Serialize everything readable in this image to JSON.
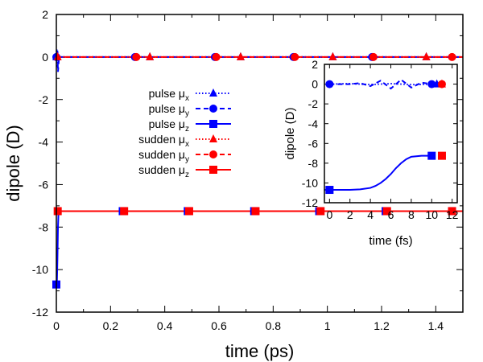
{
  "chart_data": [
    {
      "type": "line",
      "panel": "main",
      "xlabel": "time (ps)",
      "ylabel": "dipole (D)",
      "xlim": [
        0,
        1.5
      ],
      "ylim": [
        -12,
        2
      ],
      "xticks": [
        0,
        0.2,
        0.4,
        0.6,
        0.8,
        1.0,
        1.2,
        1.4
      ],
      "xtick_labels": [
        "0",
        "0.2",
        "0.4",
        "0.6",
        "0.8",
        "1",
        "1.2",
        "1.4"
      ],
      "yticks": [
        -12,
        -10,
        -8,
        -6,
        -4,
        -2,
        0,
        2
      ],
      "ytick_labels": [
        "-12",
        "-10",
        "-8",
        "-6",
        "-4",
        "-2",
        "0",
        "2"
      ],
      "legend_position": "upper-middle",
      "series": [
        {
          "name": "pulse μx",
          "label_main": "pulse μ",
          "label_sub": "x",
          "color": "#0000ff",
          "dash": "dotted",
          "marker": "triangle",
          "x": [
            0,
            0.001,
            0.003,
            0.005,
            0.01,
            1.5
          ],
          "y": [
            0,
            0.4,
            -0.5,
            0.2,
            0,
            0
          ],
          "marker_x": [
            0,
            0.345,
            0.68,
            1.02,
            1.365
          ],
          "marker_y": [
            0,
            0,
            0,
            0,
            0
          ]
        },
        {
          "name": "pulse μy",
          "label_main": "pulse μ",
          "label_sub": "y",
          "color": "#0000ff",
          "dash": "dashed",
          "marker": "circle",
          "x": [
            0,
            0.002,
            0.004,
            0.006,
            0.01,
            1.5
          ],
          "y": [
            0,
            -0.3,
            0.3,
            -0.7,
            0,
            0
          ],
          "marker_x": [
            0,
            0.29,
            0.585,
            0.875,
            1.165
          ],
          "marker_y": [
            0,
            0,
            0,
            0,
            0
          ]
        },
        {
          "name": "pulse μz",
          "label_main": "pulse μ",
          "label_sub": "z",
          "color": "#0000ff",
          "dash": "solid",
          "marker": "square",
          "x": [
            0,
            0.002,
            0.004,
            0.006,
            0.008,
            0.01,
            1.5
          ],
          "y": [
            -10.7,
            -10.7,
            -9.5,
            -8.0,
            -7.3,
            -7.25,
            -7.25
          ],
          "marker_x": [
            0,
            0.245,
            0.485,
            0.73,
            0.97,
            1.215,
            1.46
          ],
          "marker_y": [
            -10.7,
            -7.25,
            -7.25,
            -7.25,
            -7.25,
            -7.25,
            -7.25
          ]
        },
        {
          "name": "sudden μx",
          "label_main": "sudden μ",
          "label_sub": "x",
          "color": "#ff0000",
          "dash": "dotted",
          "marker": "triangle",
          "x": [
            0,
            1.5
          ],
          "y": [
            0,
            0
          ],
          "marker_x": [
            0.005,
            0.345,
            0.68,
            1.02,
            1.365
          ],
          "marker_y": [
            0,
            0,
            0,
            0,
            0
          ]
        },
        {
          "name": "sudden μy",
          "label_main": "sudden μ",
          "label_sub": "y",
          "color": "#ff0000",
          "dash": "dashed",
          "marker": "circle",
          "x": [
            0,
            1.5
          ],
          "y": [
            0,
            0
          ],
          "marker_x": [
            0.295,
            0.59,
            0.88,
            1.17,
            1.46
          ],
          "marker_y": [
            0,
            0,
            0,
            0,
            0
          ]
        },
        {
          "name": "sudden μz",
          "label_main": "sudden μ",
          "label_sub": "z",
          "color": "#ff0000",
          "dash": "solid",
          "marker": "square",
          "x": [
            0,
            1.5
          ],
          "y": [
            -7.25,
            -7.25
          ],
          "marker_x": [
            0.005,
            0.25,
            0.49,
            0.735,
            0.975,
            1.22,
            1.46
          ],
          "marker_y": [
            -7.25,
            -7.25,
            -7.25,
            -7.25,
            -7.25,
            -7.25,
            -7.25
          ]
        }
      ]
    },
    {
      "type": "line",
      "panel": "inset",
      "xlabel": "time (fs)",
      "ylabel": "dipole (D)",
      "xlim": [
        -0.5,
        12.5
      ],
      "ylim": [
        -12,
        2
      ],
      "xticks": [
        0,
        2,
        4,
        6,
        8,
        10,
        12
      ],
      "xtick_labels": [
        "0",
        "2",
        "4",
        "6",
        "8",
        "10",
        "12"
      ],
      "yticks": [
        -12,
        -10,
        -8,
        -6,
        -4,
        -2,
        0,
        2
      ],
      "ytick_labels": [
        "-12",
        "-10",
        "-8",
        "-6",
        "-4",
        "-2",
        "0",
        "2"
      ],
      "series": [
        {
          "name": "pulse μx",
          "color": "#0000ff",
          "dash": "dotted",
          "marker": "triangle",
          "x": [
            0,
            2,
            4,
            6,
            8,
            10.5
          ],
          "y": [
            0,
            0.05,
            -0.05,
            0.05,
            -0.05,
            0
          ],
          "marker_x": [
            10.5
          ],
          "marker_y": [
            0
          ]
        },
        {
          "name": "pulse μy",
          "color": "#0000ff",
          "dash": "dashed",
          "marker": "circle",
          "x": [
            0,
            2,
            3,
            4,
            5,
            6,
            7,
            8,
            9,
            10
          ],
          "y": [
            0,
            0,
            0.1,
            -0.2,
            0.35,
            -0.45,
            0.45,
            -0.35,
            0.15,
            0
          ],
          "marker_x": [
            0,
            10
          ],
          "marker_y": [
            0,
            0
          ]
        },
        {
          "name": "pulse μz",
          "color": "#0000ff",
          "dash": "solid",
          "marker": "square",
          "x": [
            -0.5,
            0,
            1,
            2,
            3,
            4,
            4.5,
            5,
            5.5,
            6,
            6.5,
            7,
            7.5,
            8,
            9,
            10
          ],
          "y": [
            -10.7,
            -10.7,
            -10.7,
            -10.7,
            -10.65,
            -10.5,
            -10.3,
            -10.0,
            -9.6,
            -9.1,
            -8.5,
            -8.0,
            -7.6,
            -7.35,
            -7.25,
            -7.25
          ],
          "marker_x": [
            0,
            10
          ],
          "marker_y": [
            -10.7,
            -7.25
          ]
        },
        {
          "name": "sudden μx",
          "color": "#ff0000",
          "dash": "dotted",
          "marker": "triangle",
          "x": [],
          "y": [],
          "marker_x": [
            11
          ],
          "marker_y": [
            0
          ]
        },
        {
          "name": "sudden μy",
          "color": "#ff0000",
          "dash": "dashed",
          "marker": "circle",
          "x": [],
          "y": [],
          "marker_x": [
            11
          ],
          "marker_y": [
            0
          ]
        },
        {
          "name": "sudden μz",
          "color": "#ff0000",
          "dash": "solid",
          "marker": "square",
          "x": [],
          "y": [],
          "marker_x": [
            11
          ],
          "marker_y": [
            -7.25
          ]
        }
      ]
    }
  ]
}
